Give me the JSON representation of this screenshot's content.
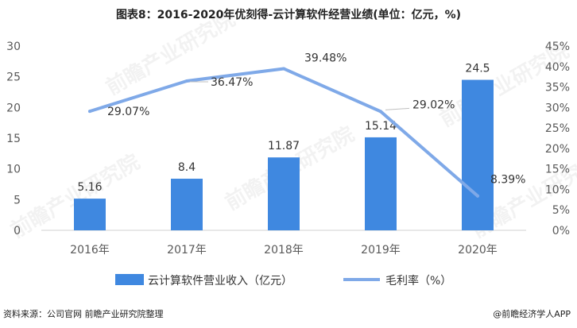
{
  "header": {
    "title": "图表8：2016-2020年优刻得-云计算软件经营业绩(单位：亿元，%)"
  },
  "chart_data": {
    "type": "bar",
    "categories": [
      "2016年",
      "2017年",
      "2018年",
      "2019年",
      "2020年"
    ],
    "series": [
      {
        "name": "云计算软件营业收入（亿元）",
        "type": "bar",
        "axis": "left",
        "values": [
          5.16,
          8.4,
          11.87,
          15.14,
          24.5
        ],
        "labels": [
          "5.16",
          "8.4",
          "11.87",
          "15.14",
          "24.5"
        ],
        "color": "#3F88E0"
      },
      {
        "name": "毛利率（%）",
        "type": "line",
        "axis": "right",
        "values": [
          29.07,
          36.47,
          39.48,
          29.02,
          8.39
        ],
        "labels": [
          "29.07%",
          "36.47%",
          "39.48%",
          "29.02%",
          "8.39%"
        ],
        "color": "#7FA9E8"
      }
    ],
    "y_left": {
      "min": 0,
      "max": 30,
      "ticks": [
        "0",
        "5",
        "10",
        "15",
        "20",
        "25",
        "30"
      ]
    },
    "y_right": {
      "min": 0,
      "max": 45,
      "ticks": [
        "0%",
        "5%",
        "10%",
        "15%",
        "20%",
        "25%",
        "30%",
        "35%",
        "40%",
        "45%"
      ]
    },
    "grid": false,
    "legend_position": "bottom"
  },
  "watermark": {
    "text": "前瞻产业研究院"
  },
  "footer": {
    "source": "资料来源：公司官网 前瞻产业研究院整理",
    "credit": "@前瞻经济学人APP"
  }
}
